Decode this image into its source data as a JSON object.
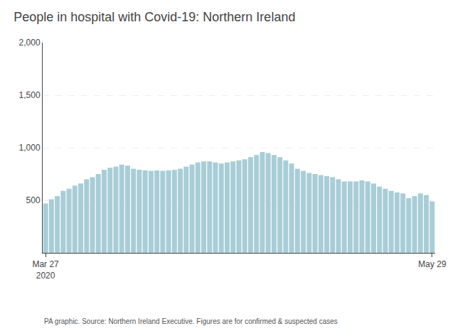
{
  "chart_data": {
    "type": "bar",
    "title": "People in hospital with Covid-19: Northern Ireland",
    "annotations": [
      "PA graphic. Source: Northern Ireland Executive. Figures are for confirmed & suspected cases"
    ],
    "categories": [
      "Mar 27\n2020",
      null,
      null,
      null,
      null,
      null,
      null,
      null,
      null,
      null,
      null,
      null,
      null,
      null,
      null,
      null,
      null,
      null,
      null,
      null,
      null,
      null,
      null,
      null,
      null,
      null,
      null,
      null,
      null,
      null,
      null,
      null,
      null,
      null,
      null,
      null,
      null,
      null,
      null,
      null,
      null,
      null,
      null,
      null,
      null,
      null,
      null,
      null,
      null,
      null,
      null,
      null,
      null,
      null,
      null,
      null,
      null,
      null,
      null,
      null,
      null,
      null,
      null,
      null,
      null,
      null,
      "May 29"
    ],
    "values": [
      470,
      510,
      540,
      590,
      610,
      640,
      660,
      700,
      720,
      750,
      790,
      810,
      820,
      840,
      830,
      800,
      790,
      785,
      780,
      785,
      780,
      785,
      790,
      800,
      820,
      840,
      860,
      870,
      870,
      860,
      850,
      860,
      870,
      880,
      890,
      910,
      930,
      960,
      950,
      930,
      910,
      880,
      850,
      800,
      780,
      760,
      750,
      740,
      730,
      720,
      700,
      680,
      680,
      680,
      690,
      680,
      660,
      630,
      610,
      590,
      575,
      565,
      520,
      540,
      565,
      550,
      490
    ],
    "color": "#a8cdd6",
    "ylim": [
      0,
      2000
    ],
    "yticks": [
      500,
      {
        "value": 1000,
        "label": "1,000"
      },
      {
        "value": 1500,
        "label": "1,500"
      },
      {
        "value": 2000,
        "label": "2,000"
      }
    ],
    "grid": true
  }
}
